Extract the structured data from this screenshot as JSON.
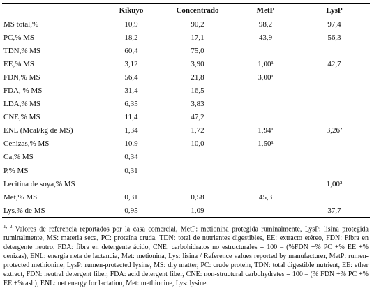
{
  "table": {
    "columns": [
      "Kikuyo",
      "Concentrado",
      "MetP",
      "LysP"
    ],
    "rows": [
      [
        "MS total,%",
        "10,9",
        "90,2",
        "98,2",
        "97,4"
      ],
      [
        "PC,% MS",
        "18,2",
        "17,1",
        "43,9",
        "56,3"
      ],
      [
        "TDN,% MS",
        "60,4",
        "75,0",
        null,
        null
      ],
      [
        "EE,% MS",
        "3,12",
        "3,90",
        "1,00¹",
        "42,7"
      ],
      [
        "FDN,% MS",
        "56,4",
        "21,8",
        "3,00¹",
        null
      ],
      [
        "FDA, % MS",
        "31,4",
        "16,5",
        null,
        null
      ],
      [
        "LDA,% MS",
        "6,35",
        "3,83",
        null,
        null
      ],
      [
        "CNE,% MS",
        "11,4",
        "47,2",
        null,
        null
      ],
      [
        "ENL (Mcal/kg de MS)",
        "1,34",
        "1,72",
        "1,94¹",
        "3,26²"
      ],
      [
        "Cenizas,% MS",
        "10.9",
        "10,0",
        "1,50¹",
        null
      ],
      [
        "Ca,% MS",
        "0,34",
        null,
        null,
        null
      ],
      [
        "P,% MS",
        "0,31",
        null,
        null,
        null
      ],
      [
        "Lecitina de soya,% MS",
        null,
        null,
        null,
        "1,00²"
      ],
      [
        "Met,% MS",
        "0,31",
        "0,58",
        "45,3",
        null
      ],
      [
        "Lys,% de MS",
        "0,95",
        "1,09",
        null,
        "37,7"
      ]
    ]
  },
  "footnote": {
    "marker": "1, 2",
    "text": "Valores de referencia reportados por la casa comercial, MetP: metionina protegida ruminalmente, LysP: lisina protegida ruminalmente, MS: materia seca, PC: proteína cruda, TDN: total de nutrientes digestibles, EE: extracto etéreo, FDN: Fibra en detergente neutro, FDA: fibra en detergente ácido, CNE: carbohidratos no estructurales = 100 – (%FDN +% PC +% EE +% cenizas), ENL: energía neta de lactancia, Met: metionina, Lys: lisina / Reference values reported by manufacturer, MetP: rumen-protected methionine, LysP: rumen-protected lysine, MS: dry matter, PC: crude protein, TDN: total digestible nutrient, EE: ether extract, FDN: neutral detergent fiber, FDA: acid detergent fiber, CNE: non-structural carbohydrates = 100 – (% FDN +% PC +% EE +% ash), ENL: net energy for lactation, Met: methionine, Lys: lysine."
  }
}
